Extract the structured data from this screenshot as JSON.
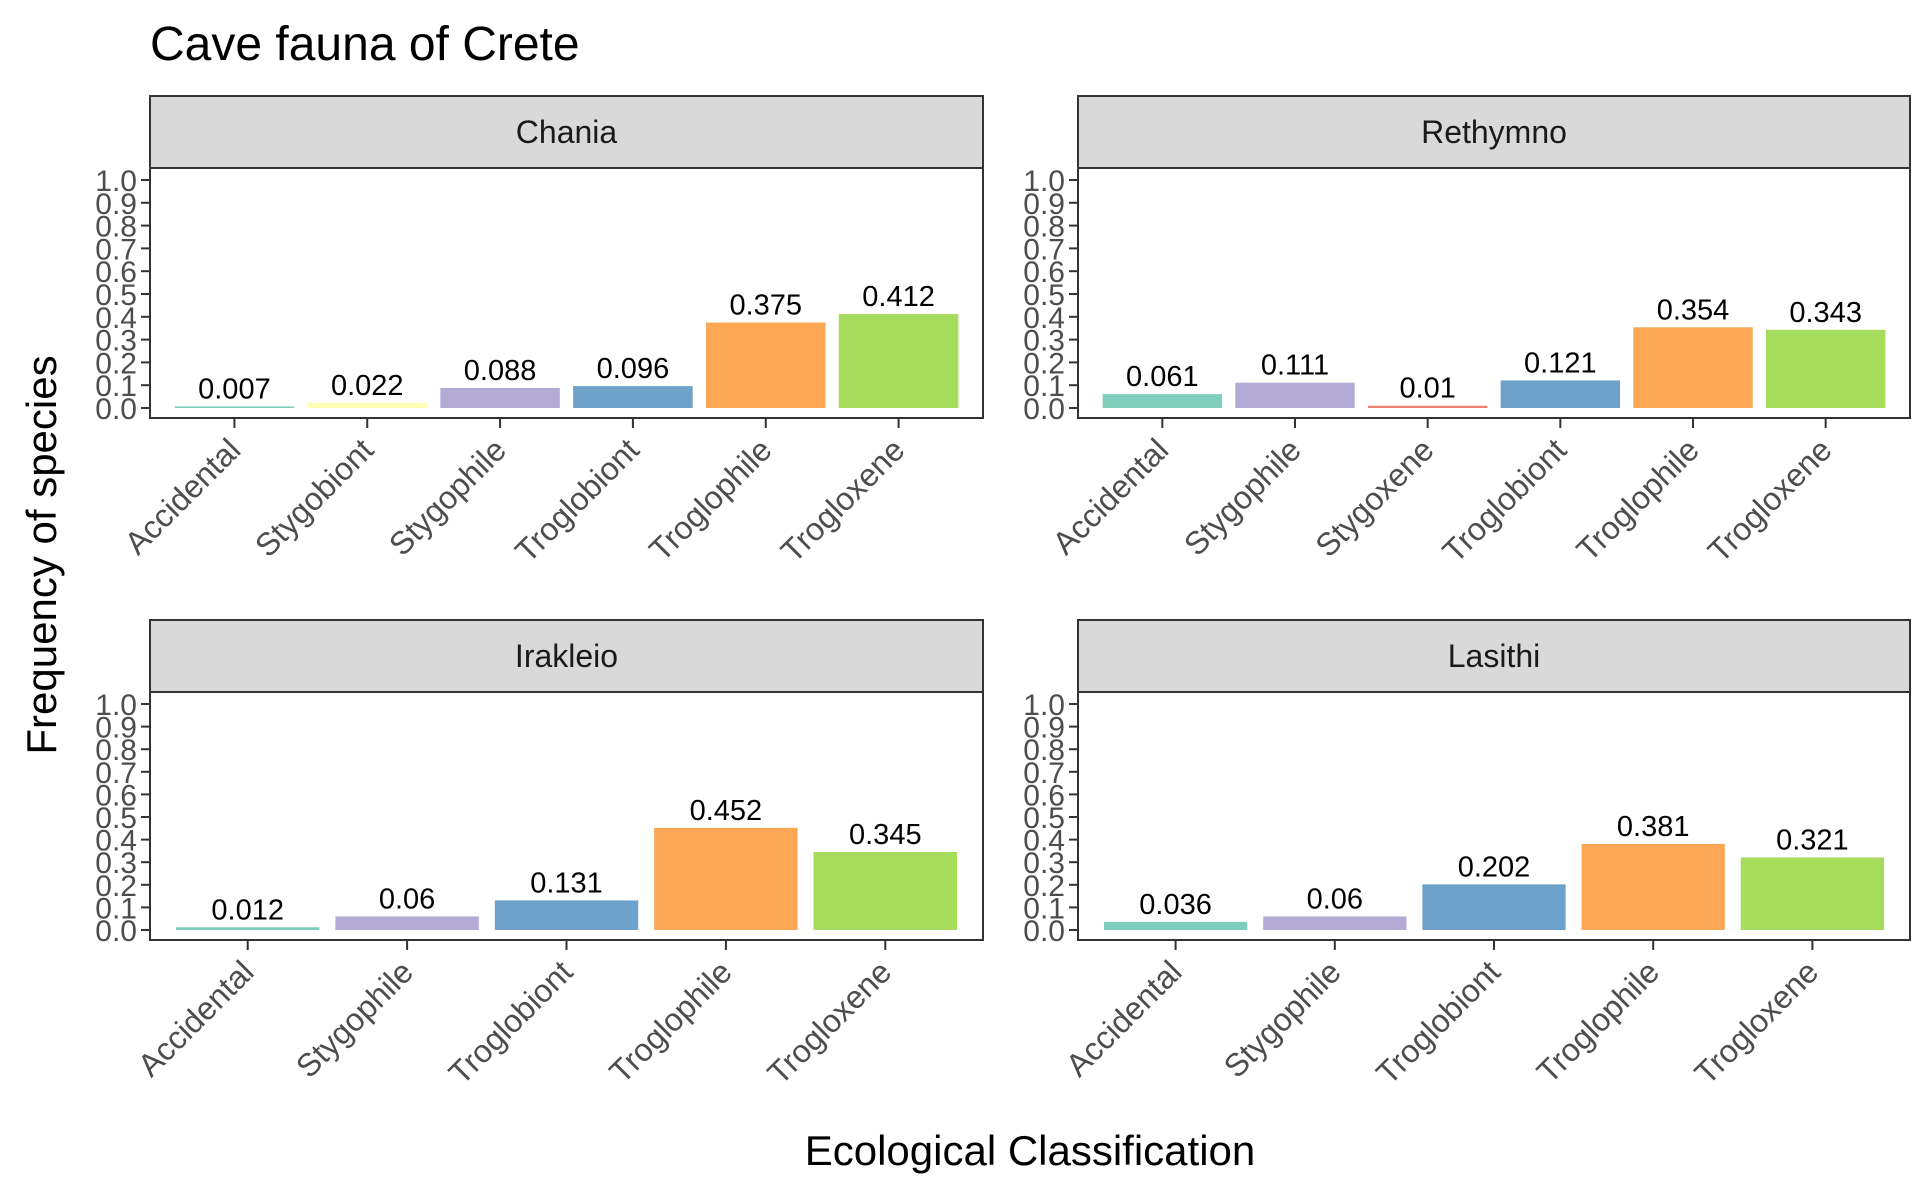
{
  "title": "Cave fauna of Crete",
  "xlabel": "Ecological Classification",
  "ylabel": "Frequency of species",
  "colors": {
    "Accidental": "#7fcdbb",
    "Stygobiont": "#ffffb3",
    "Stygophile": "#b3aad6",
    "Stygoxene": "#f08070",
    "Troglobiont": "#6ea2cb",
    "Troglophile": "#fba754",
    "Trogloxene": "#a6dc5c"
  },
  "chart_data": [
    {
      "type": "bar",
      "panel": "Chania",
      "categories": [
        "Accidental",
        "Stygobiont",
        "Stygophile",
        "Troglobiont",
        "Troglophile",
        "Trogloxene"
      ],
      "values": [
        0.007,
        0.022,
        0.088,
        0.096,
        0.375,
        0.412
      ],
      "labels": [
        "0.007",
        "0.022",
        "0.088",
        "0.096",
        "0.375",
        "0.412"
      ],
      "ylim": [
        0,
        1.0
      ],
      "yticks": [
        "0.0",
        "0.1",
        "0.2",
        "0.3",
        "0.4",
        "0.5",
        "0.6",
        "0.7",
        "0.8",
        "0.9",
        "1.0"
      ]
    },
    {
      "type": "bar",
      "panel": "Rethymno",
      "categories": [
        "Accidental",
        "Stygophile",
        "Stygoxene",
        "Troglobiont",
        "Troglophile",
        "Trogloxene"
      ],
      "values": [
        0.061,
        0.111,
        0.01,
        0.121,
        0.354,
        0.343
      ],
      "labels": [
        "0.061",
        "0.111",
        "0.01",
        "0.121",
        "0.354",
        "0.343"
      ],
      "ylim": [
        0,
        1.0
      ],
      "yticks": [
        "0.0",
        "0.1",
        "0.2",
        "0.3",
        "0.4",
        "0.5",
        "0.6",
        "0.7",
        "0.8",
        "0.9",
        "1.0"
      ]
    },
    {
      "type": "bar",
      "panel": "Irakleio",
      "categories": [
        "Accidental",
        "Stygophile",
        "Troglobiont",
        "Troglophile",
        "Trogloxene"
      ],
      "values": [
        0.012,
        0.06,
        0.131,
        0.452,
        0.345
      ],
      "labels": [
        "0.012",
        "0.06",
        "0.131",
        "0.452",
        "0.345"
      ],
      "ylim": [
        0,
        1.0
      ],
      "yticks": [
        "0.0",
        "0.1",
        "0.2",
        "0.3",
        "0.4",
        "0.5",
        "0.6",
        "0.7",
        "0.8",
        "0.9",
        "1.0"
      ]
    },
    {
      "type": "bar",
      "panel": "Lasithi",
      "categories": [
        "Accidental",
        "Stygophile",
        "Troglobiont",
        "Troglophile",
        "Trogloxene"
      ],
      "values": [
        0.036,
        0.06,
        0.202,
        0.381,
        0.321
      ],
      "labels": [
        "0.036",
        "0.06",
        "0.202",
        "0.381",
        "0.321"
      ],
      "ylim": [
        0,
        1.0
      ],
      "yticks": [
        "0.0",
        "0.1",
        "0.2",
        "0.3",
        "0.4",
        "0.5",
        "0.6",
        "0.7",
        "0.8",
        "0.9",
        "1.0"
      ]
    }
  ]
}
